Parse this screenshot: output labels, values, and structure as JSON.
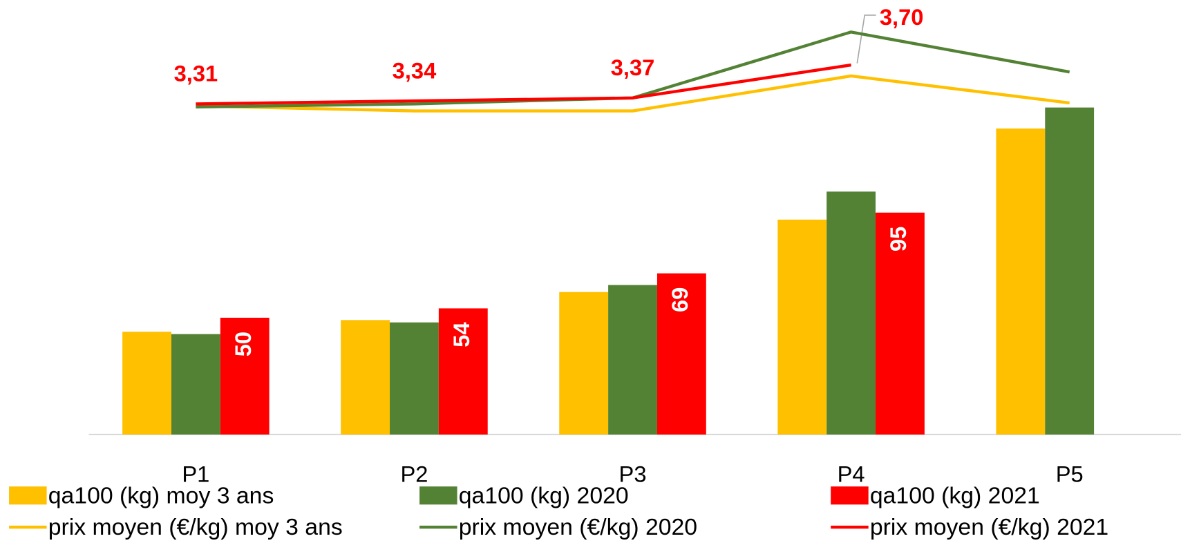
{
  "chart_data": {
    "type": "bar",
    "categories": [
      "P1",
      "P2",
      "P3",
      "P4",
      "P5"
    ],
    "ylim": [
      0,
      186
    ],
    "y2lim": [
      0,
      4.35
    ],
    "series": [
      {
        "name": "qa100 (kg) moy 3 ans",
        "type": "bar",
        "color": "#ffc000",
        "values": [
          44,
          49,
          61,
          92,
          131
        ]
      },
      {
        "name": "qa100 (kg) 2020",
        "type": "bar",
        "color": "#548235",
        "values": [
          43,
          48,
          64,
          104,
          140
        ]
      },
      {
        "name": "qa100 (kg) 2021",
        "type": "bar",
        "color": "#ff0000",
        "values": [
          50,
          54,
          69,
          95,
          null
        ],
        "data_labels": true
      },
      {
        "name": "prix moyen (€/kg) moy 3 ans",
        "type": "line",
        "axis": "y2",
        "color": "#ffc000",
        "values": [
          3.29,
          3.24,
          3.24,
          3.59,
          3.32
        ]
      },
      {
        "name": "prix moyen (€/kg) 2020",
        "type": "line",
        "axis": "y2",
        "color": "#548235",
        "values": [
          3.28,
          3.31,
          3.37,
          4.03,
          3.63
        ]
      },
      {
        "name": "prix moyen (€/kg) 2021",
        "type": "line",
        "axis": "y2",
        "color": "#ff0000",
        "values": [
          3.31,
          3.34,
          3.37,
          3.7,
          null
        ],
        "value_labels": [
          "3,31",
          "3,34",
          "3,37",
          "3,70",
          null
        ],
        "data_labels": true
      }
    ]
  }
}
